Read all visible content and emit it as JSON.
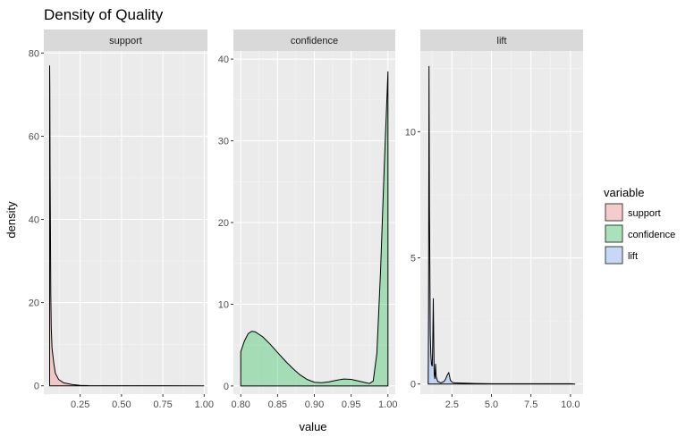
{
  "chart_data": {
    "type": "area",
    "title": "Density of Quality",
    "xlabel": "value",
    "ylabel": "density",
    "facets": [
      {
        "name": "support",
        "fill": "#f8766d",
        "xlim": [
          0.03,
          1.02
        ],
        "ylim": [
          -2,
          80.5
        ],
        "xticks": [
          0.25,
          0.5,
          0.75,
          1.0
        ],
        "xtick_labels": [
          "0.25",
          "0.50",
          "0.75",
          "1.00"
        ],
        "yticks": [
          0,
          20,
          40,
          60,
          80
        ],
        "ytick_labels": [
          "0",
          "20",
          "40",
          "60",
          "80"
        ],
        "x": [
          0.065,
          0.066,
          0.068,
          0.07,
          0.072,
          0.075,
          0.08,
          0.09,
          0.1,
          0.12,
          0.15,
          0.2,
          0.25,
          0.3,
          0.5,
          0.75,
          1.0
        ],
        "y": [
          77.0,
          72.0,
          52.0,
          38.0,
          22.0,
          14.0,
          9.0,
          5.5,
          3.0,
          1.5,
          0.7,
          0.3,
          0.1,
          0.05,
          0.02,
          0.01,
          0.0
        ]
      },
      {
        "name": "confidence",
        "fill": "#00ba38",
        "xlim": [
          0.79,
          1.01
        ],
        "ylim": [
          -1,
          41
        ],
        "xticks": [
          0.8,
          0.85,
          0.9,
          0.95,
          1.0
        ],
        "xtick_labels": [
          "0.80",
          "0.85",
          "0.90",
          "0.95",
          "1.00"
        ],
        "yticks": [
          0,
          10,
          20,
          30,
          40
        ],
        "ytick_labels": [
          "0",
          "10",
          "20",
          "30",
          "40"
        ],
        "x": [
          0.8,
          0.805,
          0.81,
          0.815,
          0.82,
          0.83,
          0.84,
          0.85,
          0.86,
          0.87,
          0.88,
          0.89,
          0.9,
          0.91,
          0.92,
          0.93,
          0.94,
          0.95,
          0.96,
          0.97,
          0.975,
          0.98,
          0.985,
          0.99,
          0.995,
          1.0
        ],
        "y": [
          4.2,
          5.5,
          6.4,
          6.7,
          6.6,
          6.0,
          5.1,
          4.1,
          3.1,
          2.2,
          1.4,
          0.8,
          0.45,
          0.4,
          0.5,
          0.7,
          0.85,
          0.8,
          0.6,
          0.4,
          0.3,
          0.6,
          4.0,
          14.0,
          27.0,
          38.5
        ]
      },
      {
        "name": "lift",
        "fill": "#619cff",
        "xlim": [
          0.5,
          10.8
        ],
        "ylim": [
          -0.4,
          13.2
        ],
        "xticks": [
          2.5,
          5.0,
          7.5,
          10.0
        ],
        "xtick_labels": [
          "2.5",
          "5.0",
          "7.5",
          "10.0"
        ],
        "yticks": [
          0,
          5,
          10
        ],
        "ytick_labels": [
          "0",
          "5",
          "10"
        ],
        "x": [
          1.0,
          1.02,
          1.05,
          1.08,
          1.1,
          1.13,
          1.16,
          1.2,
          1.25,
          1.28,
          1.32,
          1.35,
          1.38,
          1.42,
          1.46,
          1.5,
          1.6,
          1.8,
          2.0,
          2.1,
          2.2,
          2.3,
          2.35,
          2.4,
          2.5,
          2.6,
          3.0,
          3.5,
          4.0,
          5.0,
          7.5,
          10.0,
          10.3
        ],
        "y": [
          0.0,
          3.0,
          12.6,
          7.0,
          4.9,
          2.0,
          1.2,
          0.8,
          0.7,
          1.5,
          3.4,
          1.8,
          0.4,
          0.2,
          0.8,
          0.3,
          0.1,
          0.05,
          0.1,
          0.2,
          0.35,
          0.45,
          0.3,
          0.15,
          0.08,
          0.05,
          0.04,
          0.03,
          0.02,
          0.01,
          0.01,
          0.01,
          0.0
        ]
      }
    ],
    "legend": {
      "title": "variable",
      "position": "right",
      "entries": [
        {
          "label": "support",
          "color": "#f8766d"
        },
        {
          "label": "confidence",
          "color": "#00ba38"
        },
        {
          "label": "lift",
          "color": "#619cff"
        }
      ]
    },
    "grid": true,
    "fill_alpha": 0.3
  }
}
